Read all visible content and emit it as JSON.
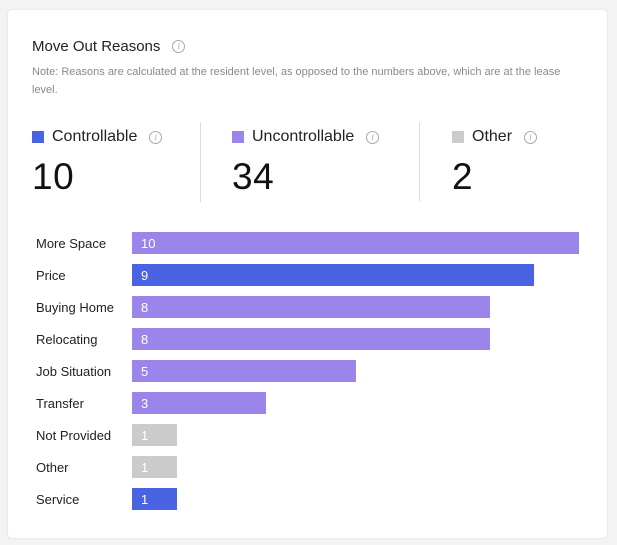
{
  "header": {
    "title": "Move Out Reasons",
    "note": "Note: Reasons are calculated at the resident level, as opposed to the numbers above, which are at the lease level."
  },
  "info_icon_glyph": "i",
  "colors": {
    "controllable": "#4a63e2",
    "uncontrollable": "#9b85eb",
    "other": "#cbcbcb"
  },
  "summary": [
    {
      "key": "controllable",
      "label": "Controllable",
      "value": "10",
      "color": "#4a63e2"
    },
    {
      "key": "uncontrollable",
      "label": "Uncontrollable",
      "value": "34",
      "color": "#9b85eb"
    },
    {
      "key": "other",
      "label": "Other",
      "value": "2",
      "color": "#cbcbcb"
    }
  ],
  "chart_data": {
    "type": "bar",
    "orientation": "horizontal",
    "title": "Move Out Reasons",
    "categories": [
      "More Space",
      "Price",
      "Buying Home",
      "Relocating",
      "Job Situation",
      "Transfer",
      "Not Provided",
      "Other",
      "Service"
    ],
    "values": [
      10,
      9,
      8,
      8,
      5,
      3,
      1,
      1,
      1
    ],
    "groups": [
      "uncontrollable",
      "controllable",
      "uncontrollable",
      "uncontrollable",
      "uncontrollable",
      "uncontrollable",
      "other",
      "other",
      "controllable"
    ],
    "xlim": [
      0,
      10
    ],
    "grid": false,
    "legend": "none"
  }
}
